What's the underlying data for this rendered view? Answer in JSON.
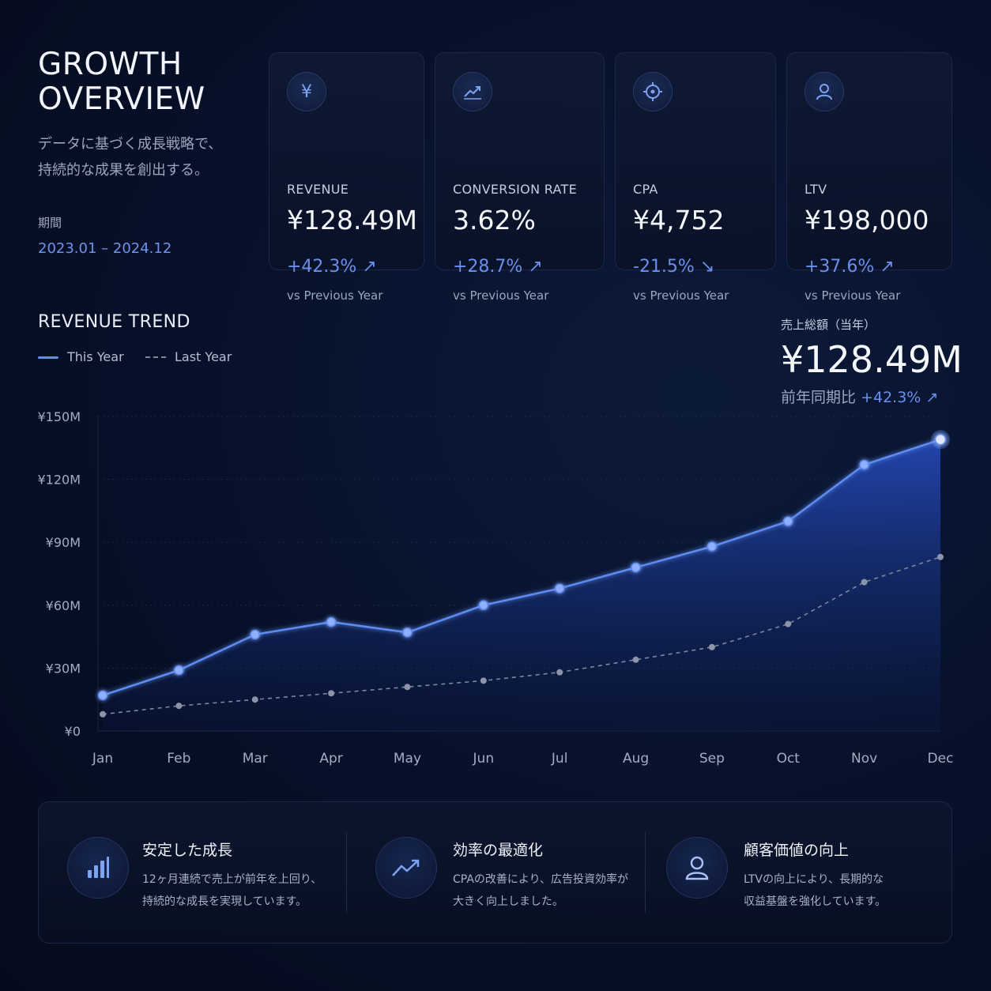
{
  "header": {
    "title_line1": "GROWTH",
    "title_line2": "OVERVIEW",
    "subtitle_line1": "データに基づく成長戦略で、",
    "subtitle_line2": "持続的な成果を創出する。",
    "period_label": "期間",
    "period_value": "2023.01 – 2024.12"
  },
  "kpis": [
    {
      "icon": "yen-icon",
      "label": "REVENUE",
      "value": "¥128.49M",
      "change": "+42.3% ↗",
      "compare": "vs Previous Year"
    },
    {
      "icon": "trend-up-icon",
      "label": "CONVERSION RATE",
      "value": "3.62%",
      "change": "+28.7% ↗",
      "compare": "vs Previous Year"
    },
    {
      "icon": "target-icon",
      "label": "CPA",
      "value": "¥4,752",
      "change": "-21.5% ↘",
      "compare": "vs Previous Year"
    },
    {
      "icon": "user-icon",
      "label": "LTV",
      "value": "¥198,000",
      "change": "+37.6% ↗",
      "compare": "vs Previous Year"
    }
  ],
  "trend": {
    "title": "REVENUE TREND",
    "total_label": "売上総額（当年）",
    "total_value": "¥128.49M",
    "total_compare_prefix": "前年同期比",
    "total_compare_value": "+42.3% ↗"
  },
  "chart_data": {
    "type": "area",
    "categories": [
      "Jan",
      "Feb",
      "Mar",
      "Apr",
      "May",
      "Jun",
      "Jul",
      "Aug",
      "Sep",
      "Oct",
      "Nov",
      "Dec"
    ],
    "ylim": [
      0,
      150
    ],
    "yticks": [
      0,
      30,
      60,
      90,
      120,
      150
    ],
    "ytick_labels": [
      "¥0",
      "¥30M",
      "¥60M",
      "¥90M",
      "¥120M",
      "¥150M"
    ],
    "grid": true,
    "legend": "top-left",
    "series": [
      {
        "name": "This Year",
        "style": "solid",
        "color": "#5f8cf0",
        "values": [
          17,
          29,
          46,
          52,
          47,
          60,
          68,
          78,
          88,
          100,
          127,
          139
        ]
      },
      {
        "name": "Last Year",
        "style": "dashed",
        "color": "#7d879b",
        "values": [
          8,
          12,
          15,
          18,
          21,
          24,
          28,
          34,
          40,
          51,
          71,
          83
        ]
      }
    ]
  },
  "features": [
    {
      "icon": "bar-chart-icon",
      "title": "安定した成長",
      "desc_line1": "12ヶ月連続で売上が前年を上回り、",
      "desc_line2": "持続的な成長を実現しています。"
    },
    {
      "icon": "trend-up-icon",
      "title": "効率の最適化",
      "desc_line1": "CPAの改善により、広告投資効率が",
      "desc_line2": "大きく向上しました。"
    },
    {
      "icon": "user-icon",
      "title": "顧客価値の向上",
      "desc_line1": "LTVの向上により、長期的な",
      "desc_line2": "収益基盤を強化しています。"
    }
  ]
}
